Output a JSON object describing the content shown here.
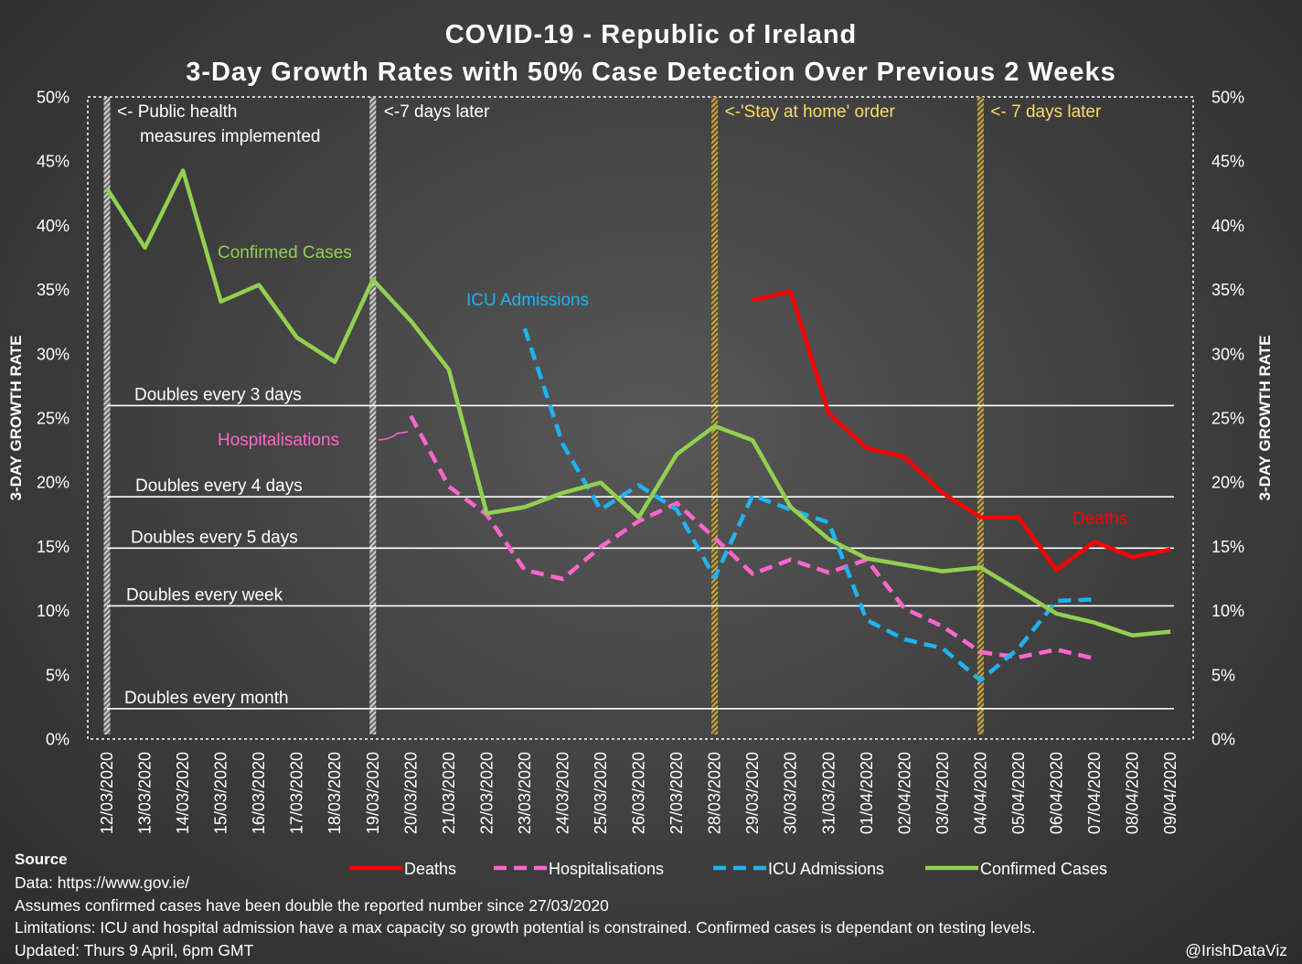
{
  "chart_data": {
    "type": "line",
    "title_line1": "COVID-19 - Republic of Ireland",
    "title_line2": "3-Day Growth Rates with 50% Case Detection Over Previous 2 Weeks",
    "ylabel_left": "3-DAY GROWTH RATE",
    "ylabel_right": "3-DAY GROWTH RATE",
    "ylim": [
      0,
      50
    ],
    "y_ticks": [
      "0%",
      "5%",
      "10%",
      "15%",
      "20%",
      "25%",
      "30%",
      "35%",
      "40%",
      "45%",
      "50%"
    ],
    "categories": [
      "12/03/2020",
      "13/03/2020",
      "14/03/2020",
      "15/03/2020",
      "16/03/2020",
      "17/03/2020",
      "18/03/2020",
      "19/03/2020",
      "20/03/2020",
      "21/03/2020",
      "22/03/2020",
      "23/03/2020",
      "24/03/2020",
      "25/03/2020",
      "26/03/2020",
      "27/03/2020",
      "28/03/2020",
      "29/03/2020",
      "30/03/2020",
      "31/03/2020",
      "01/04/2020",
      "02/04/2020",
      "03/04/2020",
      "04/04/2020",
      "05/04/2020",
      "06/04/2020",
      "07/04/2020",
      "08/04/2020",
      "09/04/2020"
    ],
    "series": [
      {
        "name": "Deaths",
        "color": "#ff0000",
        "dash": "solid",
        "values": [
          null,
          null,
          null,
          null,
          null,
          null,
          null,
          null,
          null,
          null,
          null,
          null,
          null,
          null,
          null,
          null,
          null,
          34.2,
          34.9,
          25.4,
          22.7,
          22.0,
          19.2,
          17.3,
          17.3,
          13.2,
          15.4,
          14.2,
          14.8
        ]
      },
      {
        "name": "Hospitalisations",
        "color": "#ff66cc",
        "dash": "dashed",
        "values": [
          null,
          null,
          null,
          null,
          null,
          null,
          null,
          null,
          25.2,
          19.7,
          17.5,
          13.2,
          12.5,
          15.0,
          17.0,
          18.4,
          15.7,
          12.9,
          14.0,
          13.0,
          14.0,
          10.2,
          8.8,
          6.8,
          6.4,
          7.0,
          6.3,
          null,
          null
        ]
      },
      {
        "name": "ICU Admissions",
        "color": "#1fb3f0",
        "dash": "dashed",
        "values": [
          null,
          null,
          null,
          null,
          null,
          null,
          null,
          null,
          null,
          null,
          null,
          32.0,
          23.0,
          17.9,
          19.8,
          17.9,
          12.6,
          19.0,
          17.9,
          16.9,
          9.3,
          7.8,
          7.1,
          4.6,
          7.1,
          10.8,
          10.9,
          null,
          null
        ]
      },
      {
        "name": "Confirmed Cases",
        "color": "#92d050",
        "dash": "solid",
        "values": [
          42.9,
          38.3,
          44.3,
          34.1,
          35.4,
          31.3,
          29.4,
          35.8,
          32.6,
          28.8,
          17.6,
          18.1,
          19.2,
          20.0,
          17.3,
          22.2,
          24.4,
          23.3,
          18.1,
          15.6,
          14.1,
          13.6,
          13.1,
          13.4,
          11.6,
          9.8,
          9.1,
          8.1,
          8.4
        ]
      }
    ],
    "reference_lines": [
      {
        "label": "Doubles every 3 days",
        "value": 26.0
      },
      {
        "label": "Doubles every 4 days",
        "value": 18.9
      },
      {
        "label": "Doubles every 5 days",
        "value": 14.9
      },
      {
        "label": "Doubles every week",
        "value": 10.4
      },
      {
        "label": "Doubles every month",
        "value": 2.4
      }
    ],
    "event_markers": [
      {
        "category": "12/03/2020",
        "color": "#bfbfbf",
        "label_line1": "<- Public health",
        "label_line2": "measures implemented"
      },
      {
        "category": "19/03/2020",
        "color": "#bfbfbf",
        "label_line1": "<-7 days later",
        "label_line2": ""
      },
      {
        "category": "28/03/2020",
        "color": "#b59b3a",
        "label_line1": "<-'Stay at home' order",
        "label_line2": ""
      },
      {
        "category": "04/04/2020",
        "color": "#b59b3a",
        "label_line1": "<- 7 days later",
        "label_line2": ""
      }
    ],
    "series_labels": [
      {
        "text": "Confirmed Cases",
        "color": "#92d050"
      },
      {
        "text": "ICU Admissions",
        "color": "#1fb3f0"
      },
      {
        "text": "Hospitalisations",
        "color": "#ff66cc"
      },
      {
        "text": "Deaths",
        "color": "#ff0000"
      }
    ],
    "legend": [
      "Deaths",
      "Hospitalisations",
      "ICU Admissions",
      "Confirmed Cases"
    ],
    "legend_position": "bottom"
  },
  "footer": {
    "source_heading": "Source",
    "lines": [
      "Data: https://www.gov.ie/",
      "Assumes confirmed cases have been double the reported number since 27/03/2020",
      "Limitations: ICU and hospital admission have a max capacity so growth potential is constrained. Confirmed cases is dependant on testing levels.",
      "Updated: Thurs 9 April, 6pm GMT"
    ],
    "credit": "@IrishDataViz"
  }
}
